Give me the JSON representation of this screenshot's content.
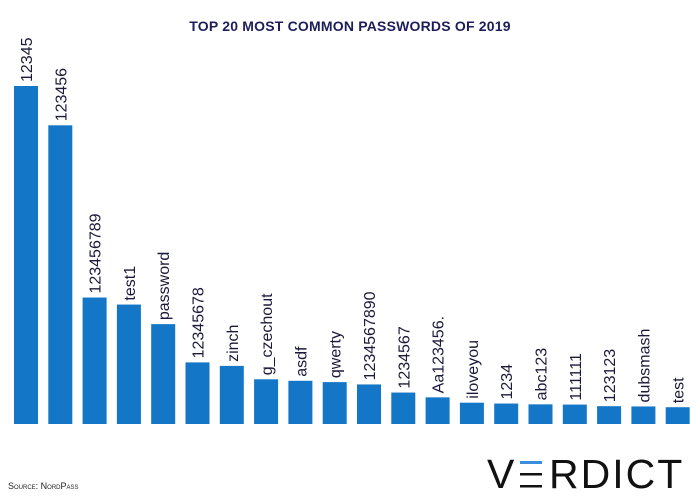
{
  "chart_data": {
    "type": "bar",
    "title": "TOP 20 MOST COMMON PASSWORDS OF 2019",
    "categories": [
      "12345",
      "123456",
      "123456789",
      "test1",
      "password",
      "12345678",
      "zinch",
      "g_czechout",
      "asdf",
      "qwerty",
      "1234567890",
      "1234567",
      "Aa123456.",
      "iloveyou",
      "1234",
      "abc123",
      "111111",
      "123123",
      "dubsmash",
      "test"
    ],
    "values": [
      2812220,
      2485216,
      1052268,
      993756,
      830846,
      512560,
      483423,
      372064,
      359520,
      348502,
      329206,
      261584,
      221751,
      177295,
      170158,
      163442,
      161679,
      148244,
      146066,
      139682
    ],
    "ylim": [
      0,
      2812220
    ],
    "bar_color": "#1476c6",
    "grid": false,
    "xlabel": "",
    "ylabel": ""
  },
  "source": "Source: NordPass",
  "logo": {
    "text": "VERDICT",
    "accent_color": "#3a8fdc"
  }
}
